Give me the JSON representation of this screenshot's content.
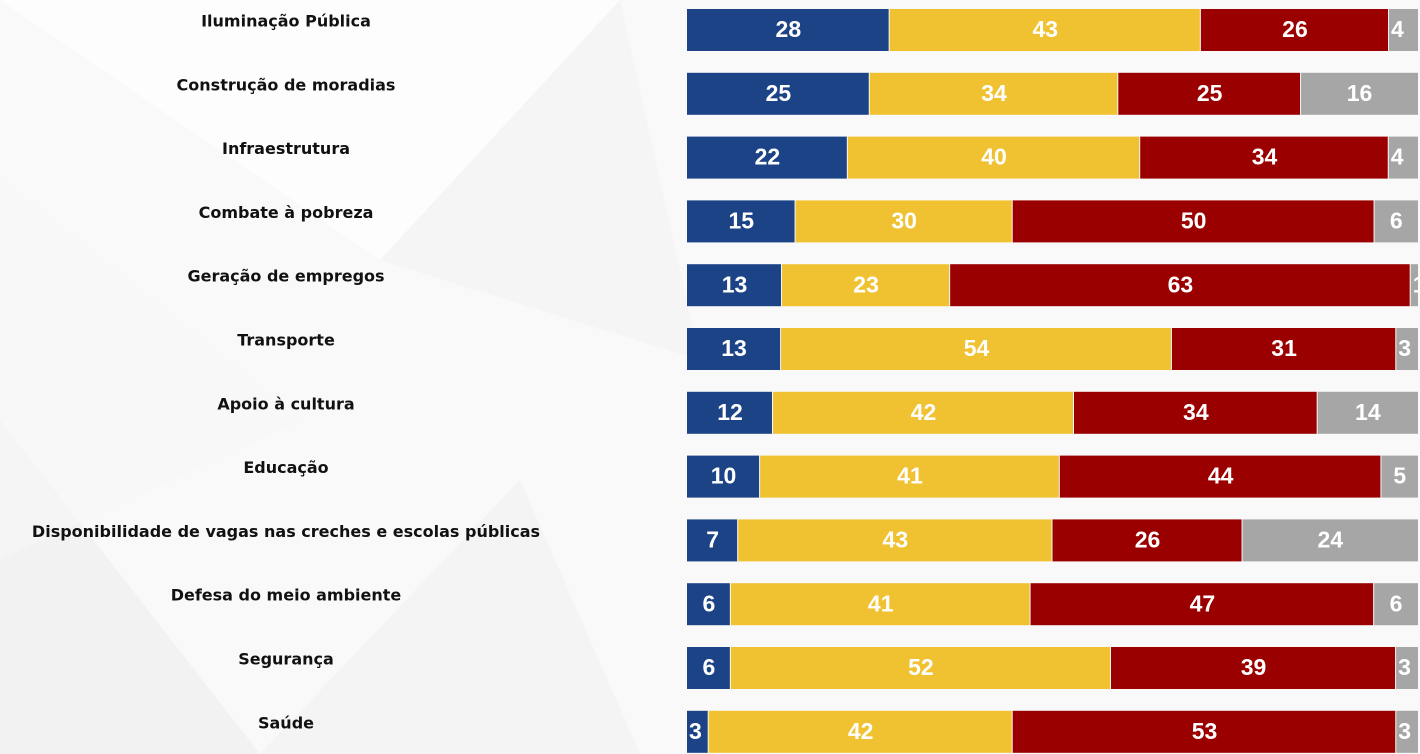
{
  "chart_data": {
    "type": "bar",
    "orientation": "horizontal",
    "stacked": true,
    "categories": [
      "Iluminação Pública",
      "Construção de moradias",
      "Infraestrutura",
      "Combate à pobreza",
      "Geração de empregos",
      "Transporte",
      "Apoio à cultura",
      "Educação",
      "Disponibilidade de vagas nas creches e escolas públicas",
      "Defesa do meio ambiente",
      "Segurança",
      "Saúde"
    ],
    "series": [
      {
        "color": "#1d4387",
        "values": [
          28,
          25,
          22,
          15,
          13,
          13,
          12,
          10,
          7,
          6,
          6,
          3
        ]
      },
      {
        "color": "#f0c232",
        "values": [
          43,
          34,
          40,
          30,
          23,
          54,
          42,
          41,
          43,
          41,
          52,
          42
        ]
      },
      {
        "color": "#9b0000",
        "values": [
          26,
          25,
          34,
          50,
          63,
          31,
          34,
          44,
          26,
          47,
          39,
          53
        ]
      },
      {
        "color": "#a6a6a6",
        "values": [
          4,
          16,
          4,
          6,
          1,
          3,
          14,
          5,
          24,
          6,
          3,
          3
        ]
      }
    ],
    "title": "",
    "xlabel": "",
    "ylabel": "",
    "xlim": [
      0,
      100
    ],
    "grid": false,
    "legend": "none"
  }
}
